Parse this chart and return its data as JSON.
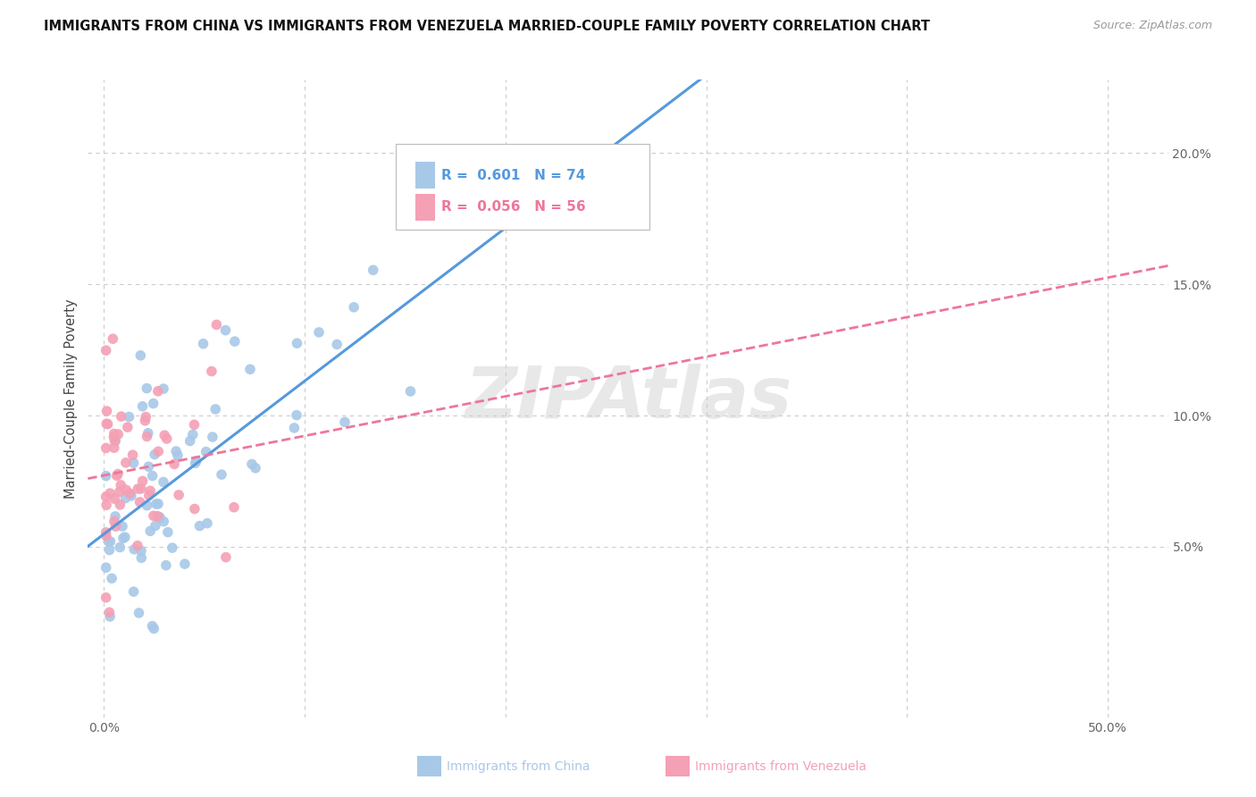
{
  "title": "IMMIGRANTS FROM CHINA VS IMMIGRANTS FROM VENEZUELA MARRIED-COUPLE FAMILY POVERTY CORRELATION CHART",
  "source": "Source: ZipAtlas.com",
  "ylabel_label": "Married-Couple Family Poverty",
  "x_tick_positions": [
    0.0,
    0.1,
    0.2,
    0.3,
    0.4,
    0.5
  ],
  "x_tick_labels": [
    "0.0%",
    "",
    "",
    "",
    "",
    "50.0%"
  ],
  "y_tick_positions": [
    0.05,
    0.1,
    0.15,
    0.2
  ],
  "y_tick_labels": [
    "5.0%",
    "10.0%",
    "15.0%",
    "20.0%"
  ],
  "xlim": [
    -0.008,
    0.53
  ],
  "ylim": [
    -0.015,
    0.228
  ],
  "china_color": "#A8C8E8",
  "venezuela_color": "#F4A0B5",
  "china_line_color": "#5599DD",
  "venezuela_line_color": "#EE7799",
  "china_R": 0.601,
  "china_N": 74,
  "venezuela_R": 0.056,
  "venezuela_N": 56,
  "watermark": "ZIPAtlas",
  "background_color": "#ffffff",
  "grid_color": "#cccccc",
  "title_color": "#111111",
  "source_color": "#999999",
  "tick_color": "#666666",
  "ylabel_color": "#444444",
  "legend_text_color_china": "#5599DD",
  "legend_text_color_venezuela": "#EE7799",
  "china_seed": 7,
  "venezuela_seed": 13
}
